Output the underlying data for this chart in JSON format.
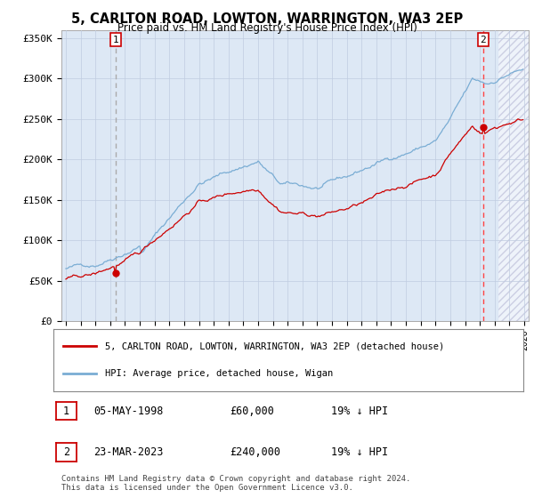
{
  "title": "5, CARLTON ROAD, LOWTON, WARRINGTON, WA3 2EP",
  "subtitle": "Price paid vs. HM Land Registry's House Price Index (HPI)",
  "ylabel_ticks": [
    "£0",
    "£50K",
    "£100K",
    "£150K",
    "£200K",
    "£250K",
    "£300K",
    "£350K"
  ],
  "ylim": [
    0,
    350000
  ],
  "xlim_start": 1994.7,
  "xlim_end": 2026.3,
  "sale1_year": 1998.37,
  "sale1_price": 60000,
  "sale1_label": "1",
  "sale1_date": "05-MAY-1998",
  "sale1_amount": "£60,000",
  "sale1_hpi": "19% ↓ HPI",
  "sale2_year": 2023.22,
  "sale2_price": 240000,
  "sale2_label": "2",
  "sale2_date": "23-MAR-2023",
  "sale2_amount": "£240,000",
  "sale2_hpi": "19% ↓ HPI",
  "red_line_color": "#cc0000",
  "blue_line_color": "#7aadd4",
  "vline1_color": "#aaaaaa",
  "vline2_color": "#ff4444",
  "marker_color": "#cc0000",
  "legend_label1": "5, CARLTON ROAD, LOWTON, WARRINGTON, WA3 2EP (detached house)",
  "legend_label2": "HPI: Average price, detached house, Wigan",
  "footnote": "Contains HM Land Registry data © Crown copyright and database right 2024.\nThis data is licensed under the Open Government Licence v3.0.",
  "background_color": "#dde8f5",
  "plot_bg_color": "#ffffff",
  "hatch_start": 2024.17
}
